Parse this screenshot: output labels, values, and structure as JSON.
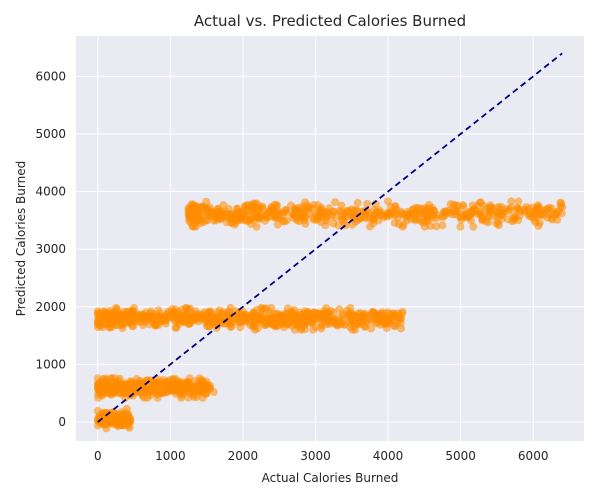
{
  "chart_data": {
    "type": "scatter",
    "title": "Actual vs. Predicted Calories Burned",
    "xlabel": "Actual Calories Burned",
    "ylabel": "Predicted Calories Burned",
    "xlim": [
      -300,
      6700
    ],
    "ylim": [
      -330,
      6700
    ],
    "xticks": [
      0,
      1000,
      2000,
      3000,
      4000,
      5000,
      6000
    ],
    "yticks": [
      0,
      1000,
      2000,
      3000,
      4000,
      5000,
      6000
    ],
    "grid": true,
    "style": "seaborn-darkgrid",
    "colors": {
      "background": "#eaeaf2",
      "grid": "#ffffff",
      "points": "#ff8c00",
      "reference_line": "#000080"
    },
    "reference_line": {
      "style": "dashed",
      "x": [
        0,
        6400
      ],
      "y": [
        0,
        6400
      ]
    },
    "series": [
      {
        "clusters": [
          {
            "level": 50,
            "y_spread": 160,
            "x_min": 0,
            "x_max": 450,
            "count": 110
          },
          {
            "level": 590,
            "y_spread": 170,
            "x_min": 0,
            "x_max": 1550,
            "count": 380
          },
          {
            "level": 1790,
            "y_spread": 190,
            "x_min": 0,
            "x_max": 4200,
            "count": 700
          },
          {
            "level": 3610,
            "y_spread": 220,
            "x_min": 1250,
            "x_max": 6400,
            "count": 550
          }
        ],
        "points": [
          [
            1250,
            3710
          ],
          [
            1500,
            3700
          ],
          [
            1420,
            3510
          ],
          [
            5650,
            3520
          ],
          [
            6050,
            3700
          ],
          [
            6400,
            3730
          ],
          [
            6250,
            3710
          ],
          [
            5350,
            3480
          ],
          [
            3400,
            1690
          ],
          [
            3800,
            1900
          ],
          [
            4200,
            1910
          ],
          [
            3680,
            1880
          ],
          [
            0,
            1920
          ],
          [
            0,
            1700
          ],
          [
            150,
            1870
          ],
          [
            1600,
            520
          ],
          [
            1500,
            700
          ],
          [
            200,
            700
          ],
          [
            400,
            230
          ],
          [
            300,
            0
          ]
        ]
      }
    ]
  }
}
